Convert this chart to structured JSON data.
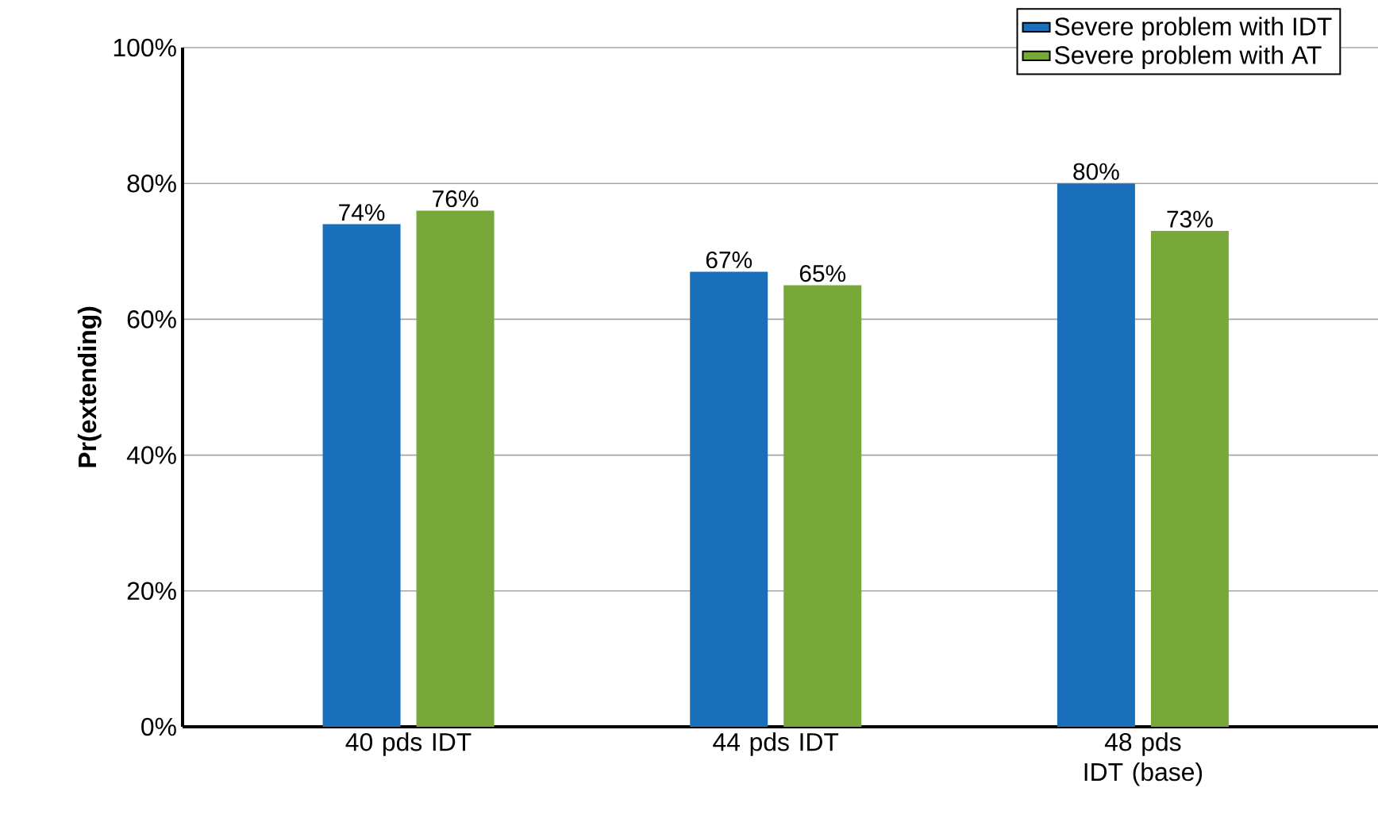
{
  "chart_data": {
    "type": "bar",
    "ylabel": "Pr(extending)",
    "categories": [
      "40 pds IDT",
      "44 pds IDT",
      "48 pds IDT (base)"
    ],
    "series": [
      {
        "name": "Severe problem with IDT",
        "color": "#1a6fba",
        "values": [
          74,
          67,
          80
        ],
        "value_labels": [
          "74%",
          "67%",
          "80%"
        ]
      },
      {
        "name": "Severe problem with AT",
        "color": "#78a83a",
        "values": [
          76,
          65,
          73
        ],
        "value_labels": [
          "76%",
          "65%",
          "73%"
        ]
      }
    ],
    "ylim": [
      0,
      100
    ],
    "yticks": [
      {
        "value": 0,
        "label": "0%"
      },
      {
        "value": 20,
        "label": "20%"
      },
      {
        "value": 40,
        "label": "40%"
      },
      {
        "value": 60,
        "label": "60%"
      },
      {
        "value": 80,
        "label": "80%"
      },
      {
        "value": 100,
        "label": "100%"
      }
    ],
    "grid": "y",
    "legend": "top right"
  }
}
